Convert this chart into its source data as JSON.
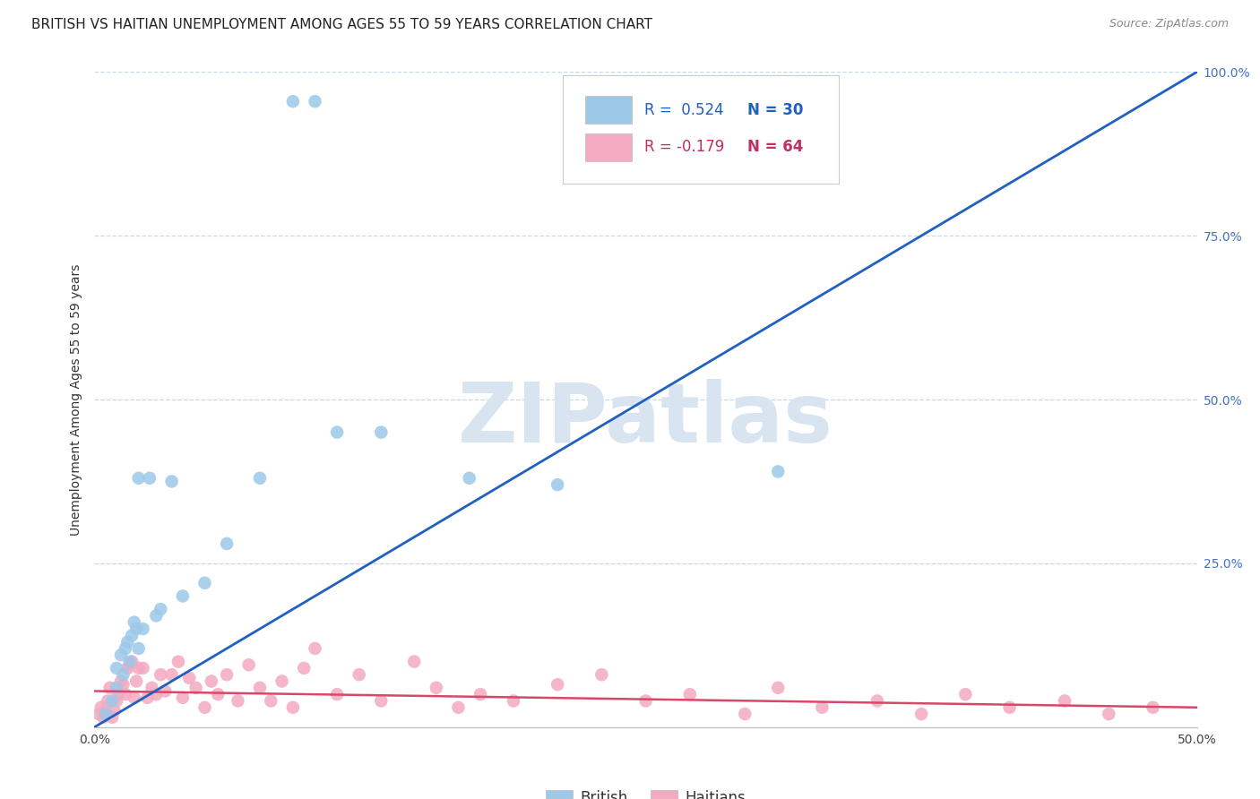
{
  "title": "BRITISH VS HAITIAN UNEMPLOYMENT AMONG AGES 55 TO 59 YEARS CORRELATION CHART",
  "source": "Source: ZipAtlas.com",
  "ylabel": "Unemployment Among Ages 55 to 59 years",
  "xlim": [
    0.0,
    0.5
  ],
  "ylim": [
    0.0,
    1.0
  ],
  "british_color": "#9dc8e8",
  "haitian_color": "#f4aac0",
  "british_line_color": "#2060c0",
  "haitian_line_color": "#d84868",
  "diagonal_color": "#b0c8e0",
  "british_R": 0.524,
  "british_N": 30,
  "haitian_R": -0.179,
  "haitian_N": 64,
  "british_line_x0": 0.0,
  "british_line_y0": -0.02,
  "british_line_x1": 0.22,
  "british_line_y1": 0.5,
  "haitian_line_x0": 0.0,
  "haitian_line_y0": 0.055,
  "haitian_line_x1": 0.5,
  "haitian_line_y1": 0.03,
  "british_x": [
    0.005,
    0.008,
    0.01,
    0.01,
    0.012,
    0.013,
    0.014,
    0.015,
    0.016,
    0.017,
    0.018,
    0.019,
    0.02,
    0.02,
    0.022,
    0.025,
    0.028,
    0.03,
    0.035,
    0.04,
    0.05,
    0.06,
    0.075,
    0.09,
    0.1,
    0.11,
    0.13,
    0.17,
    0.21,
    0.31
  ],
  "british_y": [
    0.02,
    0.04,
    0.06,
    0.09,
    0.11,
    0.08,
    0.12,
    0.13,
    0.1,
    0.14,
    0.16,
    0.15,
    0.12,
    0.38,
    0.15,
    0.38,
    0.17,
    0.18,
    0.375,
    0.2,
    0.22,
    0.28,
    0.38,
    0.955,
    0.955,
    0.45,
    0.45,
    0.38,
    0.37,
    0.39
  ],
  "haitian_x": [
    0.002,
    0.003,
    0.004,
    0.005,
    0.006,
    0.007,
    0.008,
    0.009,
    0.01,
    0.011,
    0.012,
    0.013,
    0.014,
    0.015,
    0.016,
    0.017,
    0.018,
    0.019,
    0.02,
    0.022,
    0.024,
    0.026,
    0.028,
    0.03,
    0.032,
    0.035,
    0.038,
    0.04,
    0.043,
    0.046,
    0.05,
    0.053,
    0.056,
    0.06,
    0.065,
    0.07,
    0.075,
    0.08,
    0.085,
    0.09,
    0.095,
    0.1,
    0.11,
    0.12,
    0.13,
    0.145,
    0.155,
    0.165,
    0.175,
    0.19,
    0.21,
    0.23,
    0.25,
    0.27,
    0.295,
    0.31,
    0.33,
    0.355,
    0.375,
    0.395,
    0.415,
    0.44,
    0.46,
    0.48
  ],
  "haitian_y": [
    0.02,
    0.03,
    0.015,
    0.025,
    0.04,
    0.06,
    0.015,
    0.025,
    0.04,
    0.05,
    0.07,
    0.065,
    0.05,
    0.09,
    0.095,
    0.1,
    0.045,
    0.07,
    0.09,
    0.09,
    0.045,
    0.06,
    0.05,
    0.08,
    0.055,
    0.08,
    0.1,
    0.045,
    0.075,
    0.06,
    0.03,
    0.07,
    0.05,
    0.08,
    0.04,
    0.095,
    0.06,
    0.04,
    0.07,
    0.03,
    0.09,
    0.12,
    0.05,
    0.08,
    0.04,
    0.1,
    0.06,
    0.03,
    0.05,
    0.04,
    0.065,
    0.08,
    0.04,
    0.05,
    0.02,
    0.06,
    0.03,
    0.04,
    0.02,
    0.05,
    0.03,
    0.04,
    0.02,
    0.03
  ],
  "background_color": "#ffffff",
  "grid_color": "#c8d8ea",
  "watermark_color": "#d8e4f0",
  "title_fontsize": 11,
  "axis_label_fontsize": 10,
  "tick_fontsize": 10,
  "legend_fontsize": 12,
  "source_fontsize": 9
}
